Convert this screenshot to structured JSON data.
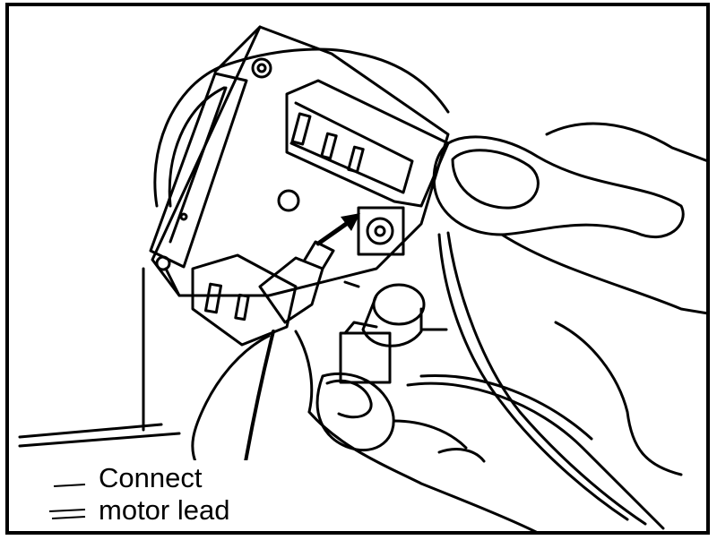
{
  "figure": {
    "callout": {
      "line1": "Connect",
      "line2": "motor lead"
    }
  },
  "colors": {
    "ink": "#000000",
    "paper": "#ffffff"
  }
}
